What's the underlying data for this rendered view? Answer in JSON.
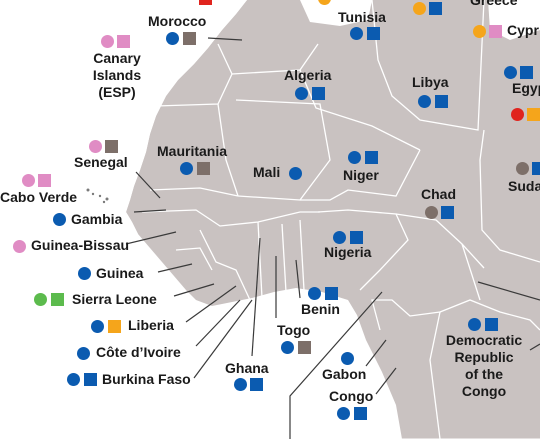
{
  "colors": {
    "land": "#c9c2c1",
    "sea": "#ffffff",
    "border": "#ffffff",
    "leader_line": "#3a3a3a",
    "blue": "#0b5bb0",
    "pink": "#e08cc4",
    "grey_brown": "#7d6f69",
    "orange": "#f5a51b",
    "green": "#5cbb4d",
    "red": "#e0241e"
  },
  "icons": [
    "circle-marker",
    "square-marker"
  ],
  "countries": {
    "greece": "Greece",
    "morocco": "Morocco",
    "tunisia": "Tunisia",
    "cyprus": "Cypr",
    "canary_1": "Canary",
    "canary_2": "Islands",
    "canary_3": "(ESP)",
    "algeria": "Algeria",
    "libya": "Libya",
    "egypt": "Egypt",
    "senegal": "Senegal",
    "mauritania": "Mauritania",
    "mali": "Mali",
    "niger": "Niger",
    "sudan": "Suda",
    "cabo_verde": "Cabo Verde",
    "chad": "Chad",
    "gambia": "Gambia",
    "guinea_bissau": "Guinea-Bissau",
    "nigeria": "Nigeria",
    "guinea": "Guinea",
    "sierra_leone": "Sierra Leone",
    "benin": "Benin",
    "liberia": "Liberia",
    "togo": "Togo",
    "drc_1": "Democratic",
    "drc_2": "Republic",
    "drc_3": "of the",
    "drc_4": "Congo",
    "cote_divoire": "Côte d’Ivoire",
    "ghana": "Ghana",
    "gabon": "Gabon",
    "burkina_faso": "Burkina Faso",
    "congo": "Congo"
  }
}
